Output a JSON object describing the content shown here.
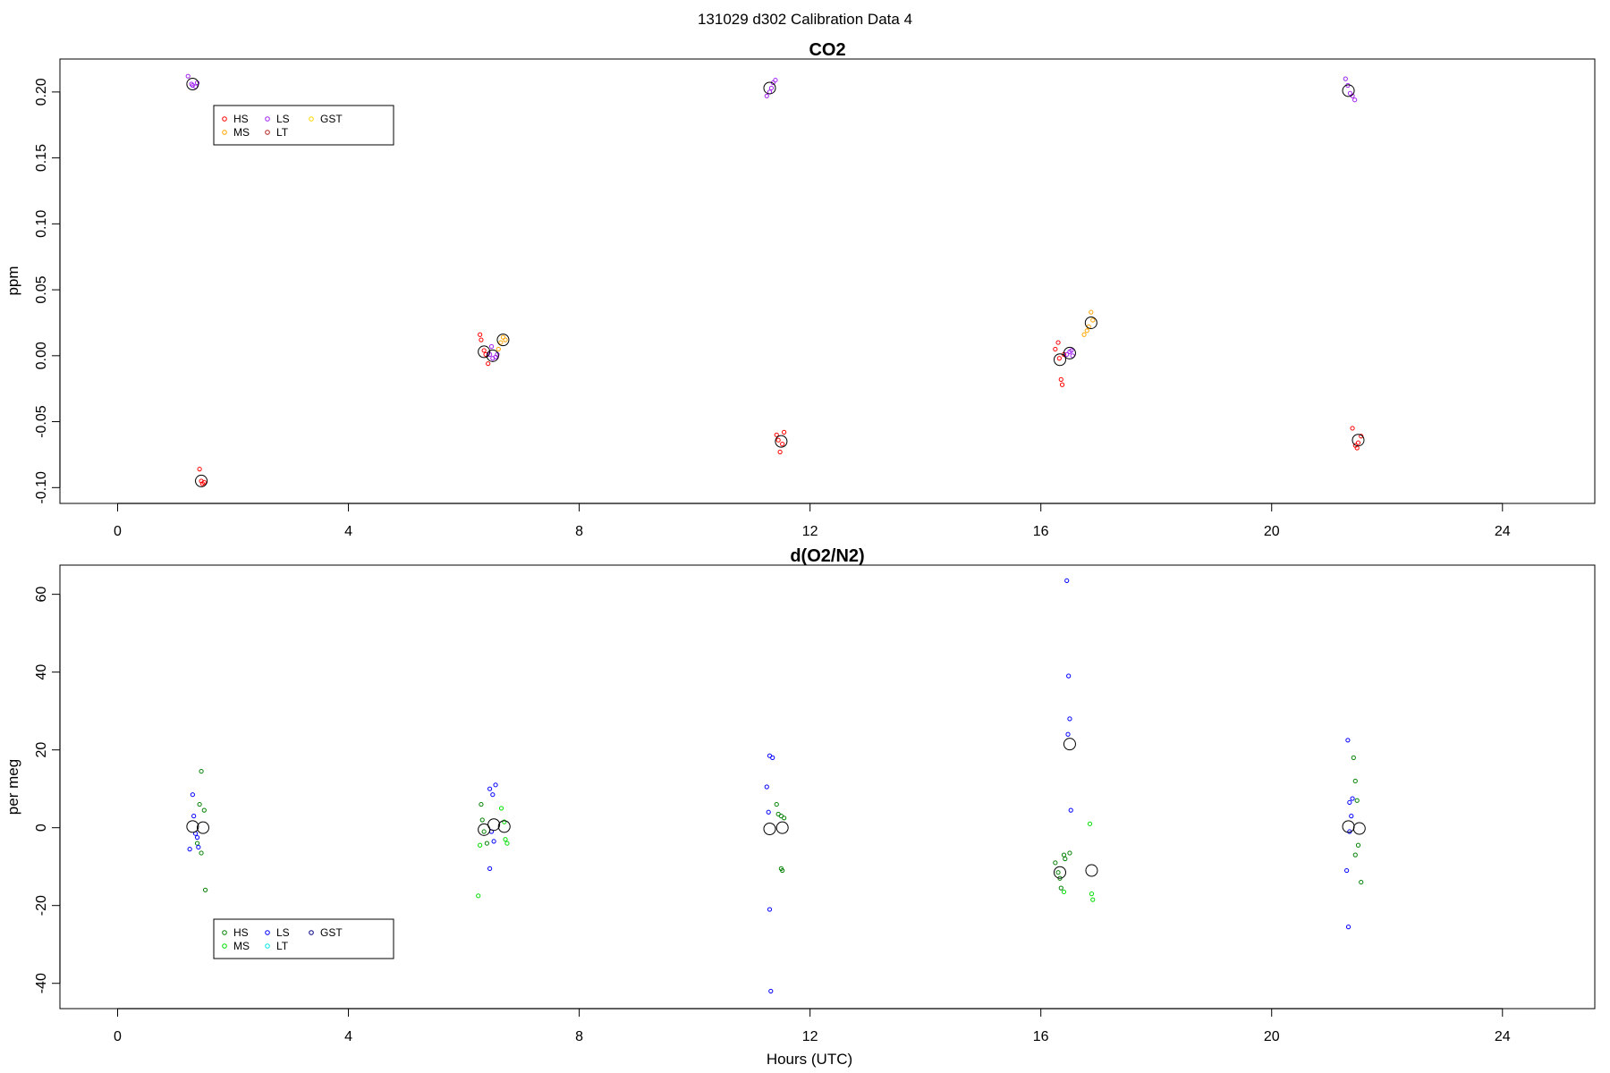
{
  "page_title": "131029   d302   Calibration Data 4",
  "x_label": "Hours (UTC)",
  "legend_colors": {
    "co2": {
      "HS": "#ff0000",
      "MS": "#ffa500",
      "LS": "#a020f0",
      "LT": "#b22222",
      "GST": "#ffd700"
    },
    "o2n2": {
      "HS": "#008000",
      "MS": "#00dd00",
      "LS": "#0000ff",
      "LT": "#00e5e5",
      "GST": "#000080"
    }
  },
  "chart_data": [
    {
      "type": "scatter",
      "title": "CO2",
      "ylabel": "ppm",
      "xlim": [
        -1.0,
        25.6
      ],
      "ylim": [
        -0.112,
        0.225
      ],
      "x_ticks": [
        0,
        4,
        8,
        12,
        16,
        20,
        24
      ],
      "y_ticks": [
        -0.1,
        -0.05,
        0.0,
        0.05,
        0.1,
        0.15,
        0.2
      ],
      "y_tick_labels": [
        "-0.10",
        "-0.05",
        "0.00",
        "0.05",
        "0.10",
        "0.15",
        "0.20"
      ],
      "legend": {
        "placement": "top-left",
        "entries": [
          "HS",
          "MS",
          "LS",
          "LT",
          "GST"
        ]
      },
      "series": [
        {
          "name": "HS",
          "points": [
            [
              1.42,
              -0.086
            ],
            [
              1.45,
              -0.095
            ],
            [
              1.47,
              -0.097
            ],
            [
              1.5,
              -0.096
            ],
            [
              6.28,
              0.016
            ],
            [
              6.3,
              0.012
            ],
            [
              6.35,
              0.004
            ],
            [
              6.38,
              0.001
            ],
            [
              6.42,
              -0.006
            ],
            [
              11.42,
              -0.06
            ],
            [
              11.45,
              -0.064
            ],
            [
              11.48,
              -0.073
            ],
            [
              11.52,
              -0.067
            ],
            [
              11.55,
              -0.058
            ],
            [
              16.25,
              0.005
            ],
            [
              16.3,
              0.01
            ],
            [
              16.32,
              -0.002
            ],
            [
              16.35,
              -0.018
            ],
            [
              16.37,
              -0.022
            ],
            [
              16.4,
              0.001
            ],
            [
              21.4,
              -0.055
            ],
            [
              21.45,
              -0.068
            ],
            [
              21.48,
              -0.07
            ],
            [
              21.5,
              -0.066
            ],
            [
              21.55,
              -0.061
            ]
          ]
        },
        {
          "name": "MS",
          "points": [
            [
              6.6,
              0.005
            ],
            [
              6.64,
              0.01
            ],
            [
              6.68,
              0.014
            ],
            [
              6.72,
              0.012
            ],
            [
              16.75,
              0.016
            ],
            [
              16.8,
              0.019
            ],
            [
              16.83,
              0.022
            ],
            [
              16.87,
              0.033
            ],
            [
              16.9,
              0.027
            ]
          ]
        },
        {
          "name": "LS",
          "points": [
            [
              1.22,
              0.212
            ],
            [
              1.28,
              0.206
            ],
            [
              1.3,
              0.205
            ],
            [
              1.35,
              0.204
            ],
            [
              1.38,
              0.207
            ],
            [
              6.45,
              0.001
            ],
            [
              6.48,
              0.007
            ],
            [
              6.5,
              -0.002
            ],
            [
              6.55,
              -0.001
            ],
            [
              6.58,
              0.001
            ],
            [
              11.25,
              0.197
            ],
            [
              11.3,
              0.2
            ],
            [
              11.33,
              0.203
            ],
            [
              11.36,
              0.207
            ],
            [
              11.4,
              0.209
            ],
            [
              16.45,
              0.001
            ],
            [
              16.5,
              0.003
            ],
            [
              16.53,
              0.004
            ],
            [
              16.55,
              0.0
            ],
            [
              21.28,
              0.21
            ],
            [
              21.32,
              0.205
            ],
            [
              21.36,
              0.199
            ],
            [
              21.4,
              0.197
            ],
            [
              21.44,
              0.194
            ]
          ]
        },
        {
          "name": "LT",
          "points": []
        },
        {
          "name": "GST",
          "points": []
        }
      ],
      "means": [
        [
          1.3,
          0.206
        ],
        [
          1.45,
          -0.095
        ],
        [
          6.35,
          0.003
        ],
        [
          6.5,
          0.0
        ],
        [
          6.68,
          0.012
        ],
        [
          11.3,
          0.203
        ],
        [
          11.5,
          -0.065
        ],
        [
          16.33,
          -0.003
        ],
        [
          16.5,
          0.002
        ],
        [
          16.87,
          0.025
        ],
        [
          21.33,
          0.201
        ],
        [
          21.5,
          -0.064
        ]
      ]
    },
    {
      "type": "scatter",
      "title": "d(O2/N2)",
      "ylabel": "per meg",
      "xlim": [
        -1.0,
        25.6
      ],
      "ylim": [
        -46.5,
        67.5
      ],
      "x_ticks": [
        0,
        4,
        8,
        12,
        16,
        20,
        24
      ],
      "y_ticks": [
        -40,
        -20,
        0,
        20,
        40,
        60
      ],
      "y_tick_labels": [
        "-40",
        "-20",
        "0",
        "20",
        "40",
        "60"
      ],
      "legend": {
        "placement": "bottom-left",
        "entries": [
          "HS",
          "MS",
          "LS",
          "LT",
          "GST"
        ]
      },
      "series": [
        {
          "name": "HS",
          "points": [
            [
              1.45,
              14.5
            ],
            [
              1.42,
              6.0
            ],
            [
              1.5,
              4.5
            ],
            [
              1.38,
              -4.0
            ],
            [
              1.45,
              -6.5
            ],
            [
              1.52,
              -16.0
            ],
            [
              6.3,
              6.0
            ],
            [
              6.32,
              2.0
            ],
            [
              6.35,
              -1.0
            ],
            [
              6.4,
              -4.0
            ],
            [
              11.42,
              6.0
            ],
            [
              11.45,
              3.5
            ],
            [
              11.5,
              3.0
            ],
            [
              11.55,
              2.5
            ],
            [
              11.5,
              -10.5
            ],
            [
              11.52,
              -11.0
            ],
            [
              16.25,
              -9.0
            ],
            [
              16.3,
              -11.5
            ],
            [
              16.33,
              -13.0
            ],
            [
              16.35,
              -15.5
            ],
            [
              16.4,
              -7.0
            ],
            [
              16.42,
              -8.0
            ],
            [
              16.5,
              -6.5
            ],
            [
              21.42,
              18.0
            ],
            [
              21.45,
              12.0
            ],
            [
              21.48,
              7.0
            ],
            [
              21.5,
              -4.5
            ],
            [
              21.45,
              -7.0
            ],
            [
              21.55,
              -14.0
            ]
          ]
        },
        {
          "name": "MS",
          "points": [
            [
              6.25,
              -17.5
            ],
            [
              6.28,
              -4.5
            ],
            [
              6.65,
              5.0
            ],
            [
              6.7,
              1.5
            ],
            [
              6.72,
              -3.0
            ],
            [
              6.75,
              -4.0
            ],
            [
              16.4,
              -16.5
            ],
            [
              16.85,
              1.0
            ],
            [
              16.88,
              -17.0
            ],
            [
              16.9,
              -18.5
            ]
          ]
        },
        {
          "name": "LS",
          "points": [
            [
              1.3,
              8.5
            ],
            [
              1.32,
              3.0
            ],
            [
              1.35,
              -1.5
            ],
            [
              1.38,
              -2.5
            ],
            [
              1.4,
              -5.0
            ],
            [
              1.25,
              -5.5
            ],
            [
              6.45,
              10.0
            ],
            [
              6.55,
              11.0
            ],
            [
              6.5,
              8.5
            ],
            [
              6.48,
              -1.0
            ],
            [
              6.52,
              -3.5
            ],
            [
              6.45,
              -10.5
            ],
            [
              11.25,
              10.5
            ],
            [
              11.3,
              18.5
            ],
            [
              11.35,
              18.0
            ],
            [
              11.28,
              4.0
            ],
            [
              11.3,
              -21.0
            ],
            [
              11.32,
              -42.0
            ],
            [
              16.45,
              63.5
            ],
            [
              16.48,
              39.0
            ],
            [
              16.5,
              28.0
            ],
            [
              16.47,
              24.0
            ],
            [
              16.52,
              4.5
            ],
            [
              21.32,
              22.5
            ],
            [
              21.35,
              6.5
            ],
            [
              21.4,
              7.5
            ],
            [
              21.38,
              3.0
            ],
            [
              21.35,
              -1.0
            ],
            [
              21.3,
              -11.0
            ],
            [
              21.33,
              -25.5
            ]
          ]
        },
        {
          "name": "LT",
          "points": []
        },
        {
          "name": "GST",
          "points": []
        }
      ],
      "means": [
        [
          1.3,
          0.3
        ],
        [
          1.48,
          0.0
        ],
        [
          6.35,
          -0.5
        ],
        [
          6.52,
          0.8
        ],
        [
          6.7,
          0.3
        ],
        [
          11.3,
          -0.3
        ],
        [
          11.52,
          0.0
        ],
        [
          16.33,
          -11.5
        ],
        [
          16.5,
          21.5
        ],
        [
          16.88,
          -11.0
        ],
        [
          21.33,
          0.3
        ],
        [
          21.52,
          -0.2
        ]
      ]
    }
  ]
}
